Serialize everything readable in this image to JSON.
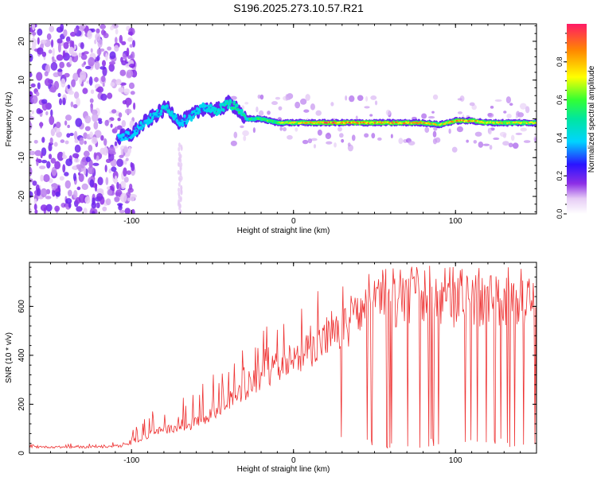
{
  "title": "S196.2025.273.10.57.R21",
  "chart_data": [
    {
      "type": "heatmap",
      "xlabel": "Height of straight line (km)",
      "ylabel": "Frequency (Hz)",
      "xlim": [
        -163,
        150
      ],
      "ylim": [
        -24.5,
        24.5
      ],
      "xticks": [
        -100,
        0,
        100
      ],
      "xtick_labels": [
        "-100",
        "0",
        "100"
      ],
      "yticks": [
        -20,
        -10,
        0,
        10,
        20
      ],
      "ytick_labels": [
        "-20",
        "-10",
        "0",
        "10",
        "20"
      ],
      "colorbar": {
        "label": "Normalized spectral amplitude",
        "range": [
          0,
          1
        ],
        "ticks": [
          0.0,
          0.2,
          0.4,
          0.6,
          0.8
        ],
        "tick_labels": [
          "0.0",
          "0.2",
          "0.4",
          "0.6",
          "0.8"
        ]
      },
      "ridge": {
        "x": [
          -108,
          -100,
          -92,
          -85,
          -78,
          -70,
          -62,
          -55,
          -48,
          -40,
          -35,
          -30,
          -20,
          -10,
          0,
          20,
          40,
          60,
          80,
          90,
          100,
          110,
          120,
          130,
          150
        ],
        "y": [
          -5,
          -4,
          -1,
          1,
          3,
          -1,
          1,
          3,
          2,
          4,
          3,
          0,
          0,
          -1,
          -1,
          -1,
          -1,
          -1,
          -1,
          -1.5,
          -0.5,
          -0.5,
          -1,
          -1,
          -1
        ],
        "amplitude": [
          0.35,
          0.35,
          0.4,
          0.4,
          0.45,
          0.35,
          0.4,
          0.4,
          0.45,
          0.5,
          0.55,
          0.5,
          0.6,
          0.65,
          0.75,
          0.9,
          0.9,
          0.85,
          0.85,
          0.7,
          0.85,
          0.85,
          0.8,
          0.75,
          0.7
        ]
      }
    },
    {
      "type": "line",
      "xlabel": "Height of straight line (km)",
      "ylabel": "SNR (10 * v/v)",
      "xlim": [
        -163,
        150
      ],
      "ylim": [
        0,
        780
      ],
      "xticks": [
        -100,
        0,
        100
      ],
      "xtick_labels": [
        "-100",
        "0",
        "100"
      ],
      "yticks": [
        0,
        200,
        400,
        600
      ],
      "ytick_labels": [
        "0",
        "200",
        "400",
        "600"
      ],
      "series": [
        {
          "name": "SNR",
          "color": "#ee3333",
          "x": [
            -163,
            -140,
            -120,
            -105,
            -95,
            -85,
            -75,
            -65,
            -55,
            -45,
            -35,
            -25,
            -15,
            -5,
            5,
            15,
            25,
            35,
            40,
            45,
            60,
            80,
            100,
            120,
            140,
            150
          ],
          "envelope": [
            25,
            25,
            25,
            30,
            50,
            90,
            100,
            110,
            140,
            180,
            230,
            290,
            320,
            350,
            390,
            450,
            480,
            520,
            560,
            620,
            620,
            620,
            620,
            620,
            620,
            610
          ],
          "peak": [
            35,
            40,
            40,
            50,
            130,
            190,
            200,
            240,
            300,
            360,
            420,
            470,
            530,
            570,
            620,
            680,
            700,
            740,
            760,
            770,
            770,
            770,
            770,
            770,
            770,
            770
          ]
        }
      ]
    }
  ]
}
